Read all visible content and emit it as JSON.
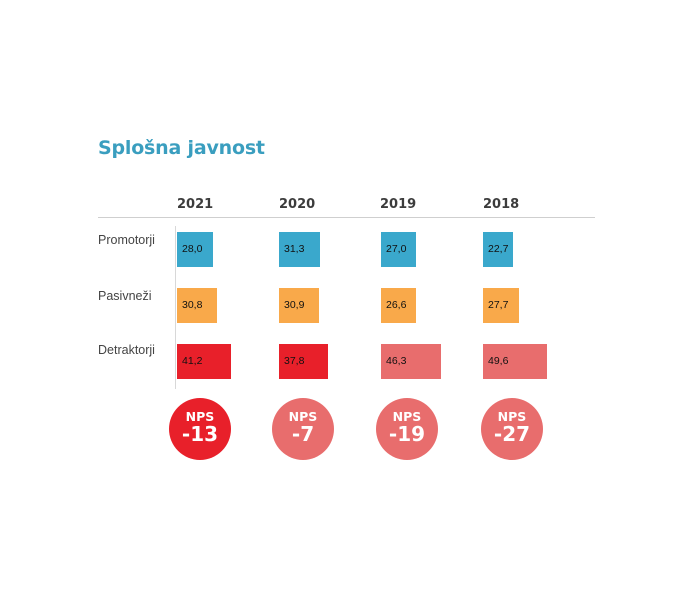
{
  "title": "Splošna javnost",
  "colors": {
    "promotorji": "#3aa8cc",
    "pasivnezi": "#f9a94a",
    "detraktorji_strong": "#e8202a",
    "detraktorji_soft": "#e86d6d",
    "nps_strong": "#e8202a",
    "nps_soft": "#e86d6d"
  },
  "chart_data": {
    "type": "bar",
    "title": "Splošna javnost",
    "categories": [
      "2021",
      "2020",
      "2019",
      "2018"
    ],
    "series": [
      {
        "name": "Promotorji",
        "values": [
          28.0,
          31.3,
          27.0,
          22.7
        ],
        "labels": [
          "28,0",
          "31,3",
          "27,0",
          "22,7"
        ]
      },
      {
        "name": "Pasivneži",
        "values": [
          30.8,
          30.9,
          26.6,
          27.7
        ],
        "labels": [
          "30,8",
          "30,9",
          "26,6",
          "27,7"
        ]
      },
      {
        "name": "Detraktorji",
        "values": [
          41.2,
          37.8,
          46.3,
          49.6
        ],
        "labels": [
          "41,2",
          "37,8",
          "46,3",
          "49,6"
        ]
      }
    ],
    "nps": {
      "label": "NPS",
      "values": [
        "-13",
        "-7",
        "-19",
        "-27"
      ]
    }
  }
}
